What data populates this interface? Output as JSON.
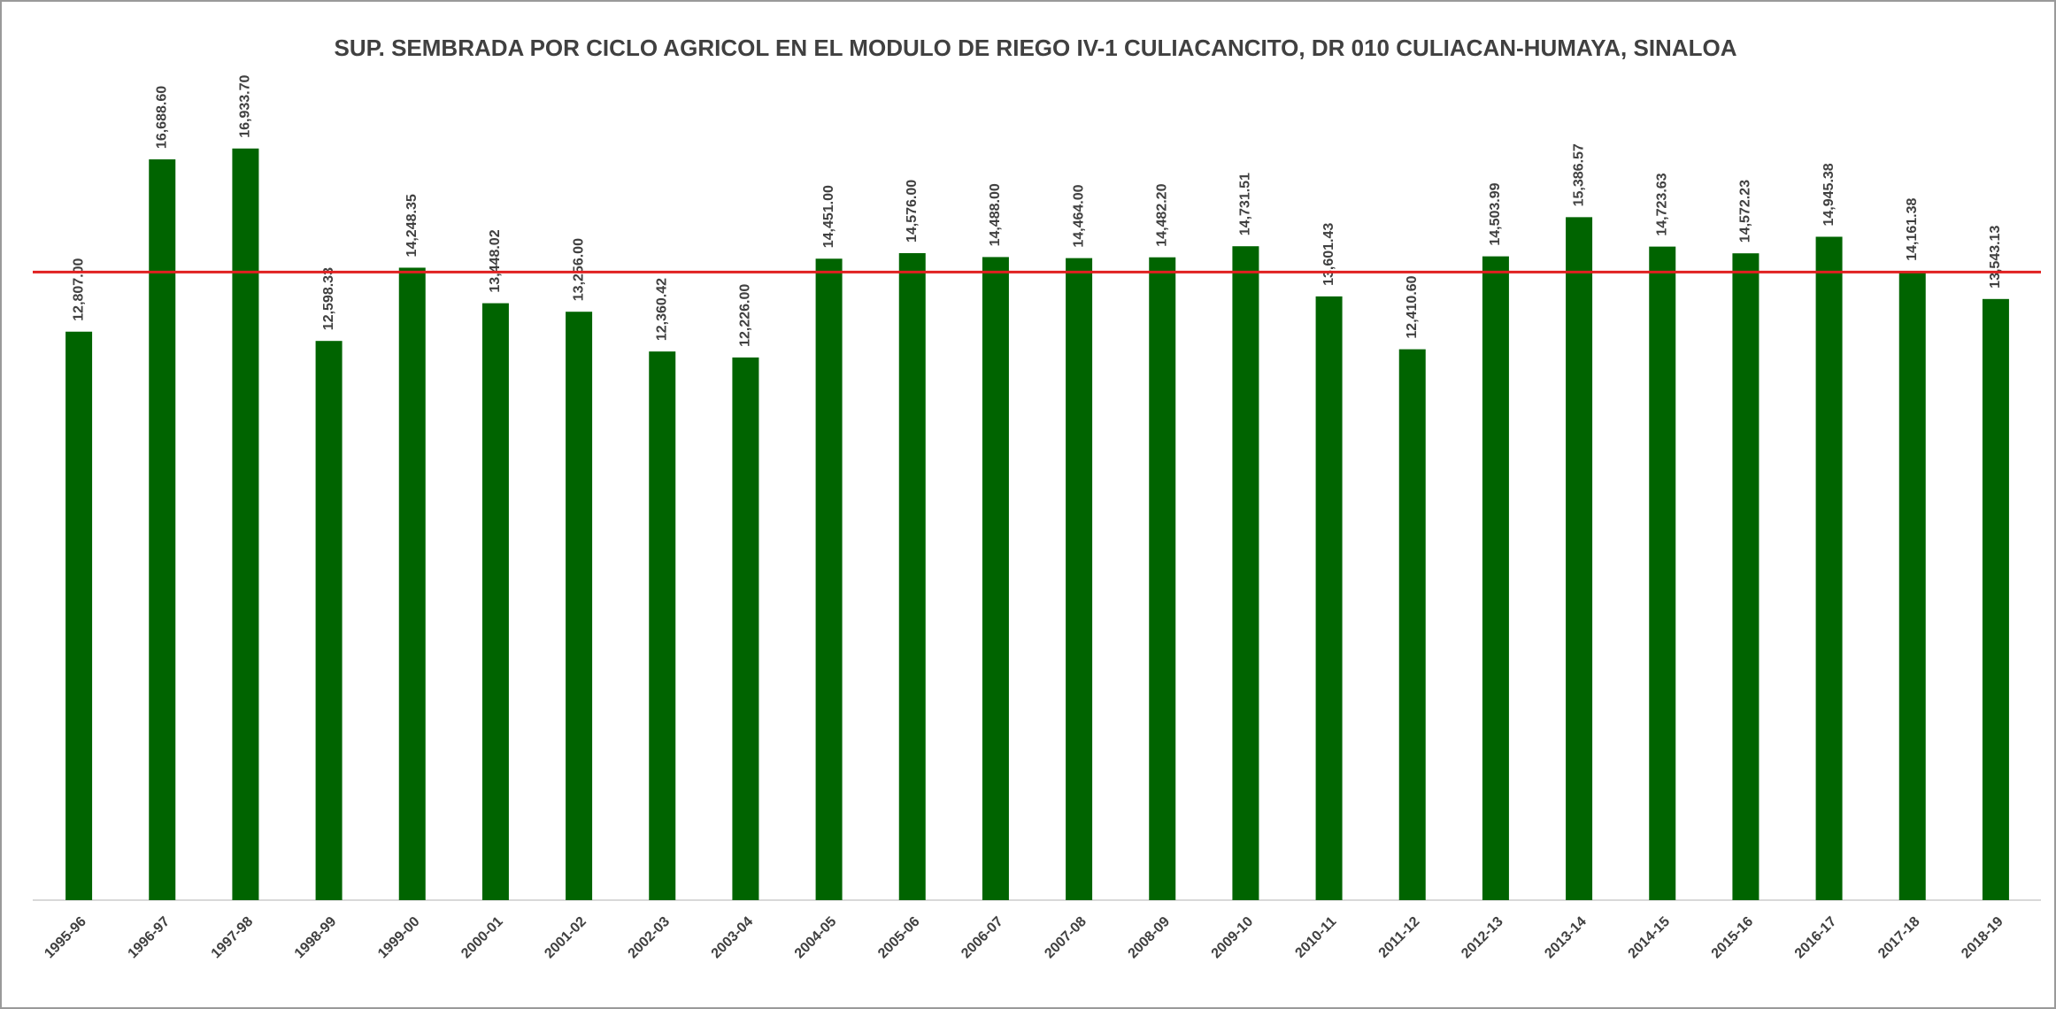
{
  "chart_data": {
    "type": "bar",
    "title": "SUP. SEMBRADA POR CICLO AGRICOL EN EL MODULO DE RIEGO IV-1 CULIACANCITO, DR 010 CULIACAN-HUMAYA,  SINALOA",
    "categories": [
      "1995-96",
      "1996-97",
      "1997-98",
      "1998-99",
      "1999-00",
      "2000-01",
      "2001-02",
      "2002-03",
      "2003-04",
      "2004-05",
      "2005-06",
      "2006-07",
      "2007-08",
      "2008-09",
      "2009-10",
      "2010-11",
      "2011-12",
      "2012-13",
      "2013-14",
      "2014-15",
      "2015-16",
      "2016-17",
      "2017-18",
      "2018-19"
    ],
    "values": [
      12807.0,
      16688.6,
      16933.7,
      12598.33,
      14248.35,
      13448.02,
      13256.0,
      12360.42,
      12226.0,
      14451.0,
      14576.0,
      14488.0,
      14464.0,
      14482.2,
      14731.51,
      13601.43,
      12410.6,
      14503.99,
      15386.57,
      14723.63,
      14572.23,
      14945.38,
      14161.38,
      13543.13
    ],
    "value_labels": [
      "12,807.00",
      "16,688.60",
      "16,933.70",
      "12,598.33",
      "14,248.35",
      "13,448.02",
      "13,256.00",
      "12,360.42",
      "12,226.00",
      "14,451.00",
      "14,576.00",
      "14,488.00",
      "14,464.00",
      "14,482.20",
      "14,731.51",
      "13,601.43",
      "12,410.60",
      "14,503.99",
      "15,386.57",
      "14,723.63",
      "14,572.23",
      "14,945.38",
      "14,161.38",
      "13,543.13"
    ],
    "color": "#006400",
    "reference_line": {
      "value": 14150,
      "color": "#e02020"
    },
    "ylim": [
      0,
      20000
    ]
  }
}
